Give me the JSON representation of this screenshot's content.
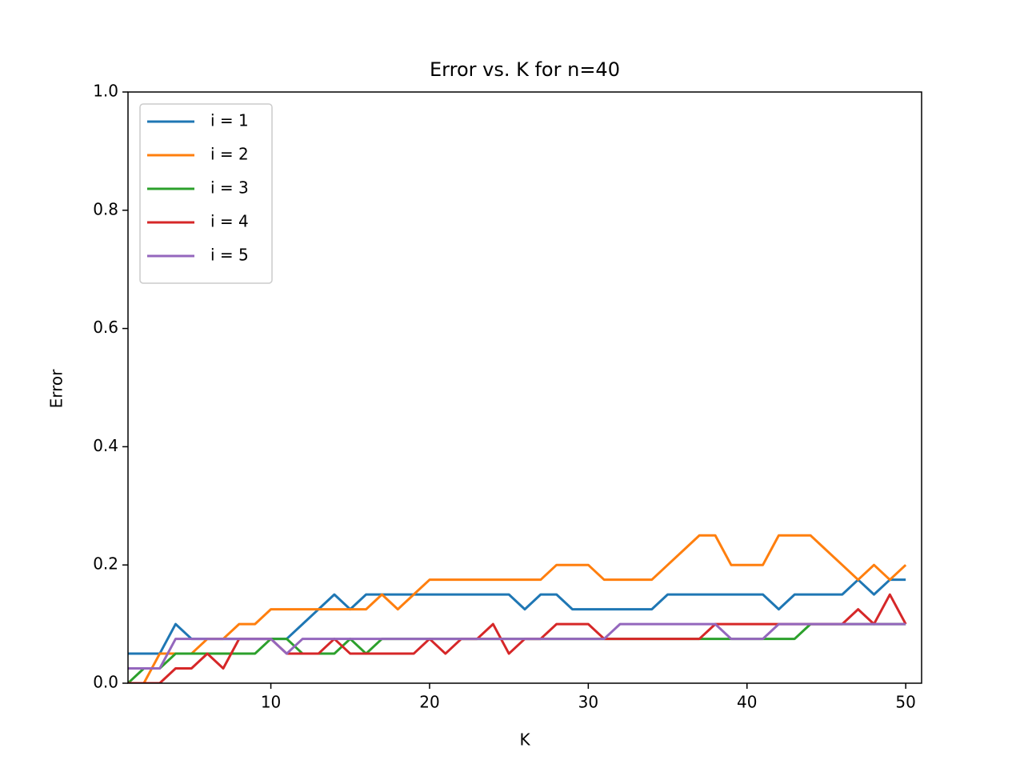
{
  "chart_data": {
    "type": "line",
    "title": "Error vs. K for n=40",
    "x_label": "K",
    "y_label": "Error",
    "x": [
      1,
      2,
      3,
      4,
      5,
      6,
      7,
      8,
      9,
      10,
      11,
      12,
      13,
      14,
      15,
      16,
      17,
      18,
      19,
      20,
      21,
      22,
      23,
      24,
      25,
      26,
      27,
      28,
      29,
      30,
      31,
      32,
      33,
      34,
      35,
      36,
      37,
      38,
      39,
      40,
      41,
      42,
      43,
      44,
      45,
      46,
      47,
      48,
      49,
      50
    ],
    "series": [
      {
        "name": "i = 1",
        "color": "#1f77b4",
        "values": [
          0.05,
          0.05,
          0.05,
          0.1,
          0.075,
          0.075,
          0.075,
          0.075,
          0.075,
          0.075,
          0.075,
          0.1,
          0.125,
          0.15,
          0.125,
          0.15,
          0.15,
          0.15,
          0.15,
          0.15,
          0.15,
          0.15,
          0.15,
          0.15,
          0.15,
          0.125,
          0.15,
          0.15,
          0.125,
          0.125,
          0.125,
          0.125,
          0.125,
          0.125,
          0.15,
          0.15,
          0.15,
          0.15,
          0.15,
          0.15,
          0.15,
          0.125,
          0.15,
          0.15,
          0.15,
          0.15,
          0.175,
          0.15,
          0.175,
          0.175
        ]
      },
      {
        "name": "i = 2",
        "color": "#ff7f0e",
        "values": [
          0,
          0,
          0.05,
          0.05,
          0.05,
          0.075,
          0.075,
          0.1,
          0.1,
          0.125,
          0.125,
          0.125,
          0.125,
          0.125,
          0.125,
          0.125,
          0.15,
          0.125,
          0.15,
          0.175,
          0.175,
          0.175,
          0.175,
          0.175,
          0.175,
          0.175,
          0.175,
          0.2,
          0.2,
          0.2,
          0.175,
          0.175,
          0.175,
          0.175,
          0.2,
          0.225,
          0.25,
          0.25,
          0.2,
          0.2,
          0.2,
          0.25,
          0.25,
          0.25,
          0.225,
          0.2,
          0.175,
          0.2,
          0.175,
          0.2
        ]
      },
      {
        "name": "i = 3",
        "color": "#2ca02c",
        "values": [
          0,
          0.025,
          0.025,
          0.05,
          0.05,
          0.05,
          0.05,
          0.05,
          0.05,
          0.075,
          0.075,
          0.05,
          0.05,
          0.05,
          0.075,
          0.05,
          0.075,
          0.075,
          0.075,
          0.075,
          0.075,
          0.075,
          0.075,
          0.075,
          0.075,
          0.075,
          0.075,
          0.075,
          0.075,
          0.075,
          0.075,
          0.075,
          0.075,
          0.075,
          0.075,
          0.075,
          0.075,
          0.075,
          0.075,
          0.075,
          0.075,
          0.075,
          0.075,
          0.1,
          0.1,
          0.1,
          0.1,
          0.1,
          0.1,
          0.1
        ]
      },
      {
        "name": "i = 4",
        "color": "#d62728",
        "values": [
          0,
          0,
          0,
          0.025,
          0.025,
          0.05,
          0.025,
          0.075,
          0.075,
          0.075,
          0.05,
          0.05,
          0.05,
          0.075,
          0.05,
          0.05,
          0.05,
          0.05,
          0.05,
          0.075,
          0.05,
          0.075,
          0.075,
          0.1,
          0.05,
          0.075,
          0.075,
          0.1,
          0.1,
          0.1,
          0.075,
          0.075,
          0.075,
          0.075,
          0.075,
          0.075,
          0.075,
          0.1,
          0.1,
          0.1,
          0.1,
          0.1,
          0.1,
          0.1,
          0.1,
          0.1,
          0.125,
          0.1,
          0.15,
          0.1
        ]
      },
      {
        "name": "i = 5",
        "color": "#9467bd",
        "values": [
          0.025,
          0.025,
          0.025,
          0.075,
          0.075,
          0.075,
          0.075,
          0.075,
          0.075,
          0.075,
          0.05,
          0.075,
          0.075,
          0.075,
          0.075,
          0.075,
          0.075,
          0.075,
          0.075,
          0.075,
          0.075,
          0.075,
          0.075,
          0.075,
          0.075,
          0.075,
          0.075,
          0.075,
          0.075,
          0.075,
          0.075,
          0.1,
          0.1,
          0.1,
          0.1,
          0.1,
          0.1,
          0.1,
          0.075,
          0.075,
          0.075,
          0.1,
          0.1,
          0.1,
          0.1,
          0.1,
          0.1,
          0.1,
          0.1,
          0.1
        ]
      }
    ],
    "xlim": [
      1,
      51
    ],
    "xticks": [
      10,
      20,
      30,
      40,
      50
    ],
    "ylim": [
      0,
      1
    ],
    "yticks": [
      {
        "value": 0,
        "label": "0.0"
      },
      {
        "value": 0.2,
        "label": "0.2"
      },
      {
        "value": 0.4,
        "label": "0.4"
      },
      {
        "value": 0.6,
        "label": "0.6"
      },
      {
        "value": 0.8,
        "label": "0.8"
      },
      {
        "value": 1,
        "label": "1.0"
      }
    ],
    "legend": "upper left",
    "grid": false
  }
}
